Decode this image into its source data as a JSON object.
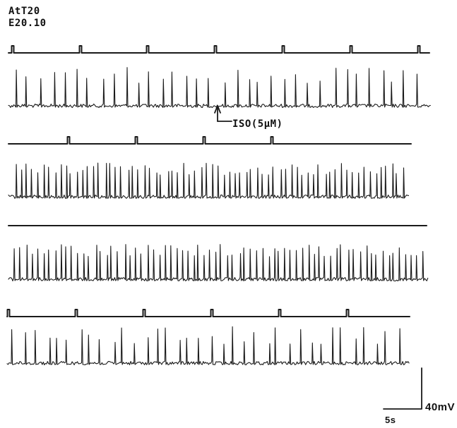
{
  "figure": {
    "title_line_1": "AtT20",
    "title_line_2": "E20.10",
    "annotation": "ISO(5μM)",
    "voltage_scale_label": "40mV",
    "time_scale_label": "5s"
  },
  "colors": {
    "trace": "#1a1a1a",
    "background": "#ffffff"
  },
  "traces": [
    {
      "marker_count": 7,
      "spike_count": 34
    },
    {
      "marker_count": 4,
      "spike_count": 70
    },
    {
      "marker_count": 0,
      "spike_count": 72
    },
    {
      "marker_count": 6,
      "spike_count": 36
    }
  ]
}
